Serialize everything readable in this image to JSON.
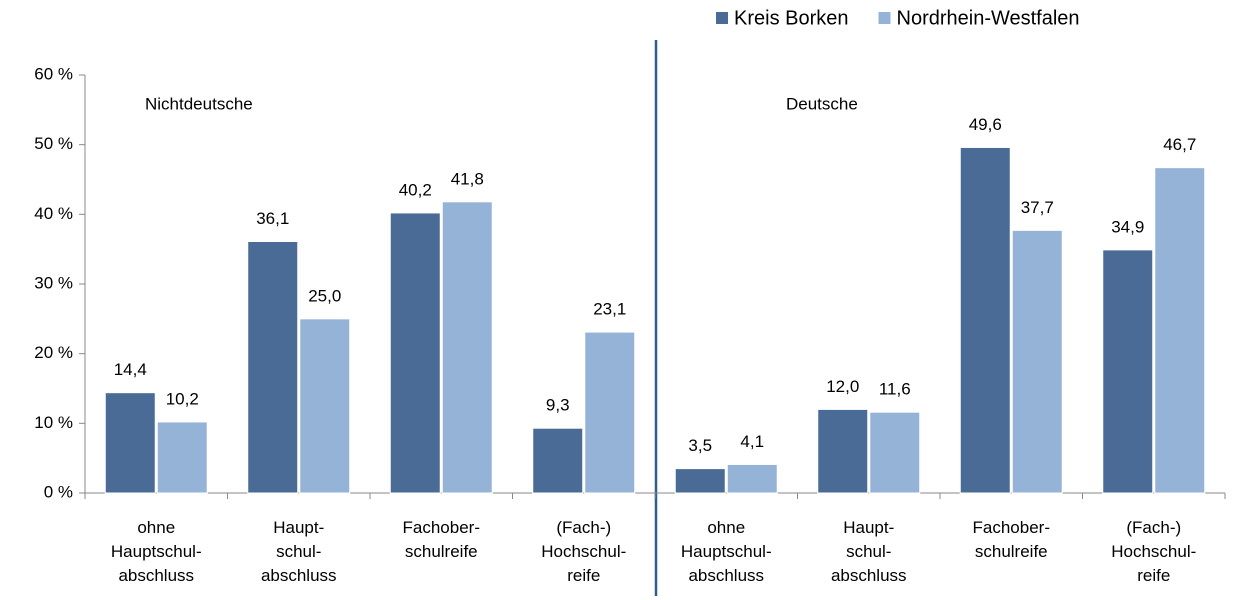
{
  "chart_data": {
    "type": "bar",
    "categories": [
      [
        "ohne",
        "Hauptschul-",
        "abschluss"
      ],
      [
        "Haupt-",
        "schul-",
        "abschluss"
      ],
      [
        "Fachober-",
        "schulreife"
      ],
      [
        "(Fach-)",
        "Hochschul-",
        "reife"
      ],
      [
        "ohne",
        "Hauptschul-",
        "abschluss"
      ],
      [
        "Haupt-",
        "schul-",
        "abschluss"
      ],
      [
        "Fachober-",
        "schulreife"
      ],
      [
        "(Fach-)",
        "Hochschul-",
        "reife"
      ]
    ],
    "series": [
      {
        "name": "Kreis Borken",
        "color": "#4a6b96",
        "values": [
          14.4,
          36.1,
          40.2,
          9.3,
          3.5,
          12.0,
          49.6,
          34.9
        ],
        "value_labels": [
          "14,4",
          "36,1",
          "40,2",
          "9,3",
          "3,5",
          "12,0",
          "49,6",
          "34,9"
        ]
      },
      {
        "name": "Nordrhein-Westfalen",
        "color": "#95b3d7",
        "values": [
          10.2,
          25.0,
          41.8,
          23.1,
          4.1,
          11.6,
          37.7,
          46.7
        ],
        "value_labels": [
          "10,2",
          "25,0",
          "41,8",
          "23,1",
          "4,1",
          "11,6",
          "37,7",
          "46,7"
        ]
      }
    ],
    "annotations": [
      "Nichtdeutsche",
      "Deutsche"
    ],
    "ylim": [
      0,
      60
    ],
    "yticks": [
      {
        "value": 0,
        "label": "0 %"
      },
      {
        "value": 10,
        "label": "10 %"
      },
      {
        "value": 20,
        "label": "20 %"
      },
      {
        "value": 30,
        "label": "30 %"
      },
      {
        "value": 40,
        "label": "40 %"
      },
      {
        "value": 50,
        "label": "50 %"
      },
      {
        "value": 60,
        "label": "60 %"
      }
    ],
    "legend": "top-right"
  }
}
